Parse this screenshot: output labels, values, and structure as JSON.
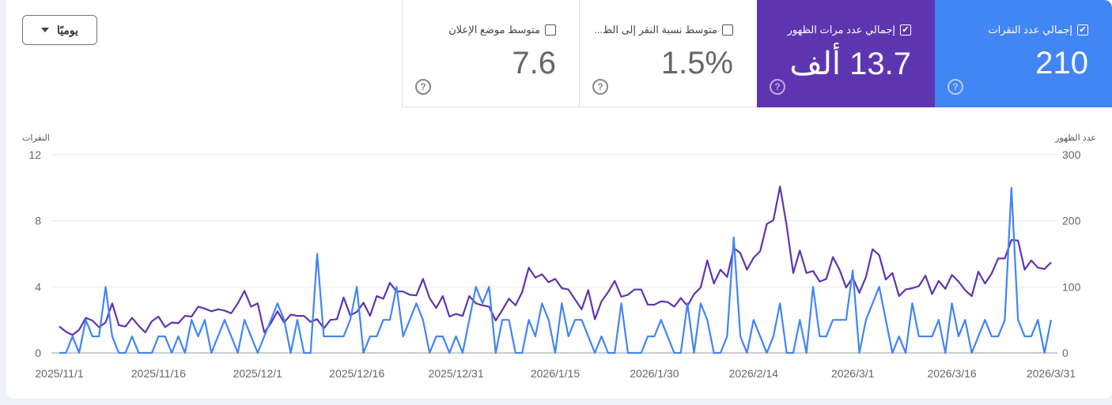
{
  "granularity_dropdown": {
    "label": "يوميًا"
  },
  "metrics": [
    {
      "label": "إجمالي عدد النقرات",
      "value": "210",
      "checked": true,
      "color": "#4285f4"
    },
    {
      "label": "إجمالي عدد مرات الظهور",
      "value": "13.7 ألف",
      "checked": true,
      "color": "#5e35b1"
    },
    {
      "label": "متوسط نسبة النقر إلى الظ...",
      "value": "1.5%",
      "checked": false
    },
    {
      "label": "متوسط موضع الإعلان",
      "value": "7.6",
      "checked": false
    }
  ],
  "help_icon": "?",
  "check_glyph": "✔",
  "chart_data": {
    "type": "line",
    "left_axis_title": "النقرات",
    "right_axis_title": "عدد الظهور",
    "left_ylim": [
      0,
      12
    ],
    "left_ticks": [
      "0",
      "4",
      "8",
      "12"
    ],
    "right_ylim": [
      0,
      300
    ],
    "right_ticks": [
      "0",
      "100",
      "200",
      "300"
    ],
    "grid": true,
    "x_start": "2025/11/1",
    "x_end": "2026/3/31",
    "x_tick_labels": [
      "2025/11/1",
      "2025/11/16",
      "2025/12/1",
      "2025/12/16",
      "2025/12/31",
      "2026/1/15",
      "2026/1/30",
      "2026/2/14",
      "2026/3/1",
      "2026/3/16",
      "2026/3/31"
    ],
    "series": [
      {
        "axis": "left",
        "color": "#4285f4",
        "values": [
          0,
          0,
          1,
          0,
          2,
          1,
          1,
          4,
          1,
          0,
          0,
          1,
          0,
          0,
          0,
          1,
          1,
          0,
          1,
          0,
          2,
          1,
          2,
          0,
          1,
          2,
          1,
          0,
          2,
          1,
          0,
          1,
          2,
          3,
          2,
          0,
          2,
          0,
          0,
          6,
          1,
          1,
          1,
          1,
          2,
          4,
          0,
          1,
          1,
          2,
          2,
          4,
          1,
          2,
          3,
          2,
          0,
          1,
          1,
          0,
          1,
          0,
          2,
          4,
          3,
          4,
          0,
          2,
          2,
          0,
          0,
          2,
          1,
          3,
          2,
          0,
          3,
          1,
          2,
          2,
          1,
          0,
          1,
          0,
          0,
          3,
          0,
          0,
          0,
          1,
          1,
          2,
          1,
          0,
          0,
          3,
          0,
          3,
          2,
          0,
          0,
          1,
          7,
          1,
          0,
          2,
          1,
          0,
          1,
          3,
          0,
          0,
          2,
          0,
          4,
          1,
          1,
          2,
          2,
          2,
          5,
          0,
          2,
          3,
          4,
          2,
          0,
          1,
          0,
          3,
          1,
          1,
          1,
          2,
          0,
          3,
          1,
          2,
          0,
          1,
          2,
          1,
          1,
          2,
          10,
          2,
          1,
          1,
          2,
          0,
          2
        ]
      },
      {
        "axis": "right",
        "color": "#5e35b1",
        "values": [
          40,
          32,
          27,
          35,
          53,
          49,
          39,
          46,
          75,
          42,
          40,
          53,
          41,
          31,
          48,
          55,
          39,
          46,
          45,
          56,
          55,
          70,
          67,
          63,
          66,
          64,
          60,
          75,
          94,
          70,
          75,
          31,
          45,
          63,
          46,
          58,
          56,
          56,
          47,
          51,
          37,
          50,
          51,
          84,
          57,
          62,
          76,
          56,
          86,
          82,
          106,
          93,
          93,
          88,
          87,
          112,
          83,
          68,
          86,
          55,
          59,
          56,
          86,
          75,
          72,
          70,
          49,
          65,
          82,
          72,
          92,
          129,
          114,
          119,
          107,
          112,
          98,
          96,
          81,
          66,
          95,
          51,
          78,
          92,
          109,
          85,
          88,
          96,
          96,
          73,
          73,
          78,
          77,
          70,
          83,
          71,
          89,
          99,
          140,
          105,
          126,
          115,
          159,
          151,
          126,
          144,
          154,
          195,
          201,
          252,
          193,
          121,
          155,
          121,
          124,
          108,
          112,
          145,
          126,
          99,
          114,
          91,
          115,
          157,
          148,
          111,
          121,
          86,
          96,
          98,
          101,
          117,
          89,
          109,
          97,
          118,
          108,
          95,
          86,
          123,
          105,
          120,
          143,
          143,
          171,
          170,
          126,
          140,
          129,
          127,
          137
        ]
      }
    ]
  }
}
